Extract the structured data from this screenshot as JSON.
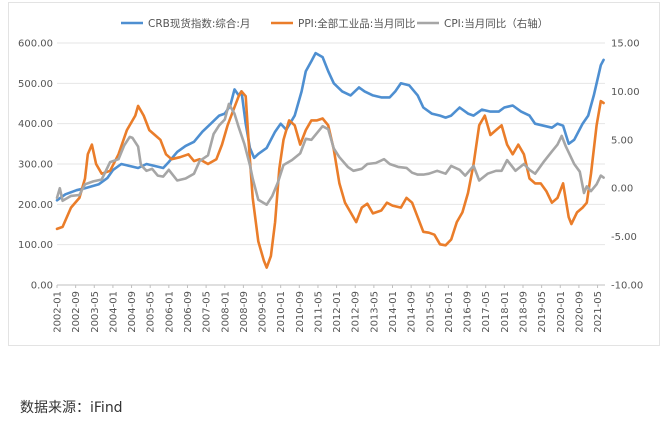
{
  "chart_data": {
    "type": "line",
    "legend_position": "top",
    "grid": true,
    "left_axis": {
      "min": 0,
      "max": 600,
      "step": 100,
      "tick_labels": [
        "0.00",
        "100.00",
        "200.00",
        "300.00",
        "400.00",
        "500.00",
        "600.00"
      ]
    },
    "right_axis": {
      "min": -10,
      "max": 15,
      "step": 5,
      "tick_labels": [
        "-10.00",
        "-5.00",
        "0.00",
        "5.00",
        "10.00",
        "15.00"
      ]
    },
    "x_labels": [
      "2002-01",
      "2002-09",
      "2003-05",
      "2004-01",
      "2004-09",
      "2005-05",
      "2006-01",
      "2006-09",
      "2007-05",
      "2008-01",
      "2008-09",
      "2009-05",
      "2010-01",
      "2010-09",
      "2011-05",
      "2012-01",
      "2012-09",
      "2013-05",
      "2014-01",
      "2014-09",
      "2015-05",
      "2016-01",
      "2016-09",
      "2017-05",
      "2018-01",
      "2018-09",
      "2019-05",
      "2020-01",
      "2020-09",
      "2021-05"
    ],
    "series": [
      {
        "name": "CRB现货指数:综合:月",
        "axis": "left",
        "color": "#4e8fd1",
        "points": [
          [
            2002.0,
            210
          ],
          [
            2002.3,
            225
          ],
          [
            2002.7,
            235
          ],
          [
            2003.0,
            240
          ],
          [
            2003.5,
            250
          ],
          [
            2003.8,
            265
          ],
          [
            2004.0,
            285
          ],
          [
            2004.3,
            300
          ],
          [
            2004.6,
            295
          ],
          [
            2004.9,
            290
          ],
          [
            2005.2,
            300
          ],
          [
            2005.5,
            295
          ],
          [
            2005.8,
            290
          ],
          [
            2006.0,
            305
          ],
          [
            2006.3,
            330
          ],
          [
            2006.6,
            345
          ],
          [
            2006.9,
            355
          ],
          [
            2007.2,
            380
          ],
          [
            2007.5,
            400
          ],
          [
            2007.8,
            420
          ],
          [
            2008.0,
            425
          ],
          [
            2008.2,
            445
          ],
          [
            2008.35,
            485
          ],
          [
            2008.5,
            470
          ],
          [
            2008.6,
            480
          ],
          [
            2008.75,
            400
          ],
          [
            2008.9,
            340
          ],
          [
            2009.05,
            315
          ],
          [
            2009.2,
            325
          ],
          [
            2009.5,
            340
          ],
          [
            2009.8,
            380
          ],
          [
            2010.0,
            400
          ],
          [
            2010.2,
            385
          ],
          [
            2010.5,
            420
          ],
          [
            2010.75,
            480
          ],
          [
            2010.9,
            530
          ],
          [
            2011.1,
            555
          ],
          [
            2011.25,
            575
          ],
          [
            2011.5,
            565
          ],
          [
            2011.7,
            530
          ],
          [
            2011.9,
            500
          ],
          [
            2012.2,
            480
          ],
          [
            2012.5,
            470
          ],
          [
            2012.8,
            490
          ],
          [
            2013.0,
            480
          ],
          [
            2013.3,
            470
          ],
          [
            2013.6,
            465
          ],
          [
            2013.9,
            465
          ],
          [
            2014.1,
            480
          ],
          [
            2014.3,
            500
          ],
          [
            2014.6,
            495
          ],
          [
            2014.9,
            470
          ],
          [
            2015.1,
            440
          ],
          [
            2015.4,
            425
          ],
          [
            2015.7,
            420
          ],
          [
            2015.9,
            415
          ],
          [
            2016.1,
            420
          ],
          [
            2016.4,
            440
          ],
          [
            2016.7,
            425
          ],
          [
            2016.9,
            420
          ],
          [
            2017.2,
            435
          ],
          [
            2017.5,
            430
          ],
          [
            2017.8,
            430
          ],
          [
            2018.0,
            440
          ],
          [
            2018.3,
            445
          ],
          [
            2018.6,
            430
          ],
          [
            2018.9,
            420
          ],
          [
            2019.1,
            400
          ],
          [
            2019.4,
            395
          ],
          [
            2019.7,
            390
          ],
          [
            2019.9,
            400
          ],
          [
            2020.1,
            395
          ],
          [
            2020.3,
            350
          ],
          [
            2020.5,
            360
          ],
          [
            2020.8,
            400
          ],
          [
            2021.0,
            420
          ],
          [
            2021.2,
            470
          ],
          [
            2021.45,
            545
          ],
          [
            2021.55,
            558
          ]
        ]
      },
      {
        "name": "PPI:全部工业品:当月同比",
        "axis": "right",
        "color": "#ea7d2a",
        "points": [
          [
            2002.0,
            -4.2
          ],
          [
            2002.2,
            -4.0
          ],
          [
            2002.5,
            -2.0
          ],
          [
            2002.8,
            -1.0
          ],
          [
            2003.0,
            1.0
          ],
          [
            2003.1,
            3.5
          ],
          [
            2003.25,
            4.5
          ],
          [
            2003.4,
            2.5
          ],
          [
            2003.6,
            1.5
          ],
          [
            2003.9,
            1.8
          ],
          [
            2004.2,
            3.5
          ],
          [
            2004.5,
            6.0
          ],
          [
            2004.8,
            7.5
          ],
          [
            2004.9,
            8.5
          ],
          [
            2005.1,
            7.5
          ],
          [
            2005.3,
            6.0
          ],
          [
            2005.5,
            5.5
          ],
          [
            2005.7,
            5.0
          ],
          [
            2005.9,
            3.5
          ],
          [
            2006.1,
            3.0
          ],
          [
            2006.4,
            3.2
          ],
          [
            2006.7,
            3.5
          ],
          [
            2006.9,
            2.8
          ],
          [
            2007.1,
            3.0
          ],
          [
            2007.4,
            2.5
          ],
          [
            2007.7,
            3.0
          ],
          [
            2007.9,
            4.5
          ],
          [
            2008.1,
            6.5
          ],
          [
            2008.3,
            8.0
          ],
          [
            2008.5,
            9.5
          ],
          [
            2008.6,
            10.0
          ],
          [
            2008.75,
            9.5
          ],
          [
            2008.85,
            5.0
          ],
          [
            2009.0,
            -1.0
          ],
          [
            2009.2,
            -5.5
          ],
          [
            2009.4,
            -7.5
          ],
          [
            2009.5,
            -8.2
          ],
          [
            2009.65,
            -7.0
          ],
          [
            2009.8,
            -3.5
          ],
          [
            2009.95,
            2.0
          ],
          [
            2010.1,
            5.0
          ],
          [
            2010.3,
            7.0
          ],
          [
            2010.5,
            6.5
          ],
          [
            2010.7,
            4.5
          ],
          [
            2010.9,
            6.0
          ],
          [
            2011.1,
            7.0
          ],
          [
            2011.3,
            7.0
          ],
          [
            2011.5,
            7.2
          ],
          [
            2011.7,
            6.5
          ],
          [
            2011.9,
            4.0
          ],
          [
            2012.1,
            0.5
          ],
          [
            2012.3,
            -1.5
          ],
          [
            2012.5,
            -2.5
          ],
          [
            2012.7,
            -3.5
          ],
          [
            2012.9,
            -2.0
          ],
          [
            2013.1,
            -1.6
          ],
          [
            2013.3,
            -2.6
          ],
          [
            2013.6,
            -2.3
          ],
          [
            2013.8,
            -1.5
          ],
          [
            2014.0,
            -1.8
          ],
          [
            2014.3,
            -2.0
          ],
          [
            2014.5,
            -1.0
          ],
          [
            2014.7,
            -1.5
          ],
          [
            2014.9,
            -3.0
          ],
          [
            2015.1,
            -4.5
          ],
          [
            2015.3,
            -4.6
          ],
          [
            2015.5,
            -4.8
          ],
          [
            2015.7,
            -5.8
          ],
          [
            2015.9,
            -5.9
          ],
          [
            2016.1,
            -5.3
          ],
          [
            2016.3,
            -3.5
          ],
          [
            2016.5,
            -2.5
          ],
          [
            2016.7,
            -0.5
          ],
          [
            2016.9,
            2.5
          ],
          [
            2017.1,
            6.5
          ],
          [
            2017.3,
            7.5
          ],
          [
            2017.5,
            5.5
          ],
          [
            2017.7,
            6.0
          ],
          [
            2017.9,
            6.5
          ],
          [
            2018.1,
            4.5
          ],
          [
            2018.3,
            3.5
          ],
          [
            2018.5,
            4.5
          ],
          [
            2018.7,
            3.5
          ],
          [
            2018.9,
            1.0
          ],
          [
            2019.1,
            0.5
          ],
          [
            2019.3,
            0.5
          ],
          [
            2019.5,
            -0.3
          ],
          [
            2019.7,
            -1.5
          ],
          [
            2019.9,
            -1.0
          ],
          [
            2020.1,
            0.5
          ],
          [
            2020.3,
            -3.0
          ],
          [
            2020.4,
            -3.7
          ],
          [
            2020.6,
            -2.5
          ],
          [
            2020.8,
            -2.0
          ],
          [
            2020.95,
            -1.5
          ],
          [
            2021.1,
            1.5
          ],
          [
            2021.3,
            6.5
          ],
          [
            2021.45,
            9.0
          ],
          [
            2021.55,
            8.8
          ]
        ]
      },
      {
        "name": "CPI:当月同比（右轴）",
        "axis": "right",
        "color": "#a6a6a6",
        "points": [
          [
            2002.0,
            -1.0
          ],
          [
            2002.1,
            0.0
          ],
          [
            2002.2,
            -1.3
          ],
          [
            2002.5,
            -0.8
          ],
          [
            2002.8,
            -0.7
          ],
          [
            2003.0,
            0.4
          ],
          [
            2003.3,
            0.7
          ],
          [
            2003.6,
            0.9
          ],
          [
            2003.9,
            2.7
          ],
          [
            2004.2,
            3.0
          ],
          [
            2004.4,
            4.4
          ],
          [
            2004.6,
            5.3
          ],
          [
            2004.7,
            5.2
          ],
          [
            2004.9,
            4.3
          ],
          [
            2005.0,
            2.4
          ],
          [
            2005.2,
            1.8
          ],
          [
            2005.4,
            2.0
          ],
          [
            2005.6,
            1.3
          ],
          [
            2005.8,
            1.2
          ],
          [
            2006.0,
            1.9
          ],
          [
            2006.3,
            0.8
          ],
          [
            2006.6,
            1.0
          ],
          [
            2006.9,
            1.5
          ],
          [
            2007.1,
            2.8
          ],
          [
            2007.4,
            3.4
          ],
          [
            2007.6,
            5.6
          ],
          [
            2007.8,
            6.5
          ],
          [
            2008.0,
            7.1
          ],
          [
            2008.15,
            8.7
          ],
          [
            2008.35,
            7.7
          ],
          [
            2008.5,
            6.3
          ],
          [
            2008.7,
            4.6
          ],
          [
            2008.9,
            2.4
          ],
          [
            2009.0,
            1.0
          ],
          [
            2009.2,
            -1.2
          ],
          [
            2009.5,
            -1.7
          ],
          [
            2009.7,
            -0.8
          ],
          [
            2009.9,
            0.6
          ],
          [
            2010.1,
            2.4
          ],
          [
            2010.4,
            2.9
          ],
          [
            2010.7,
            3.6
          ],
          [
            2010.9,
            5.1
          ],
          [
            2011.1,
            5.0
          ],
          [
            2011.5,
            6.4
          ],
          [
            2011.7,
            6.1
          ],
          [
            2011.9,
            4.1
          ],
          [
            2012.1,
            3.2
          ],
          [
            2012.4,
            2.2
          ],
          [
            2012.6,
            1.8
          ],
          [
            2012.9,
            2.0
          ],
          [
            2013.1,
            2.5
          ],
          [
            2013.4,
            2.6
          ],
          [
            2013.7,
            3.0
          ],
          [
            2013.9,
            2.5
          ],
          [
            2014.2,
            2.2
          ],
          [
            2014.5,
            2.1
          ],
          [
            2014.7,
            1.6
          ],
          [
            2014.9,
            1.4
          ],
          [
            2015.1,
            1.4
          ],
          [
            2015.3,
            1.5
          ],
          [
            2015.6,
            1.8
          ],
          [
            2015.9,
            1.5
          ],
          [
            2016.1,
            2.3
          ],
          [
            2016.4,
            1.9
          ],
          [
            2016.6,
            1.3
          ],
          [
            2016.9,
            2.3
          ],
          [
            2017.1,
            0.8
          ],
          [
            2017.4,
            1.5
          ],
          [
            2017.7,
            1.8
          ],
          [
            2017.9,
            1.8
          ],
          [
            2018.1,
            2.9
          ],
          [
            2018.4,
            1.8
          ],
          [
            2018.7,
            2.5
          ],
          [
            2018.9,
            1.9
          ],
          [
            2019.1,
            1.5
          ],
          [
            2019.4,
            2.7
          ],
          [
            2019.7,
            3.8
          ],
          [
            2019.9,
            4.5
          ],
          [
            2020.05,
            5.4
          ],
          [
            2020.2,
            4.3
          ],
          [
            2020.5,
            2.5
          ],
          [
            2020.7,
            1.7
          ],
          [
            2020.85,
            -0.5
          ],
          [
            2020.95,
            0.2
          ],
          [
            2021.1,
            -0.3
          ],
          [
            2021.3,
            0.4
          ],
          [
            2021.45,
            1.3
          ],
          [
            2021.55,
            1.1
          ]
        ]
      }
    ]
  },
  "footer": {
    "source": "数据来源：iFind"
  }
}
